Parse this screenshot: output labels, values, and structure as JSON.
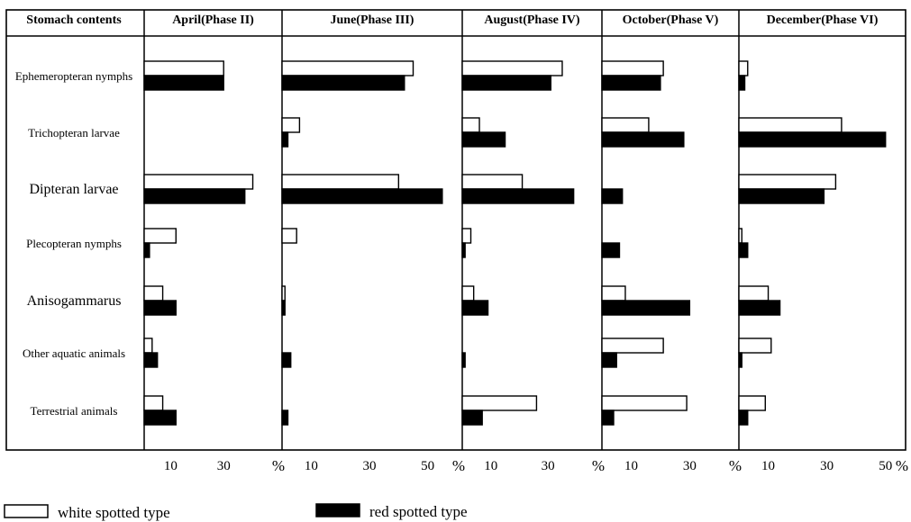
{
  "chart_data": {
    "type": "bar",
    "stub_header": "Stomach contents",
    "categories": [
      "Ephemeropteran nymphs",
      "Trichopteran larvae",
      "Dipteran larvae",
      "Plecopteran nymphs",
      "Anisogammarus",
      "Other aquatic animals",
      "Terrestrial animals"
    ],
    "unit": "%",
    "legend": {
      "white_label": "white spotted type",
      "red_label": "red spotted type",
      "placement": "bottom"
    },
    "colors": {
      "white": "#ffffff",
      "red": "#000000",
      "grid": "#000000"
    },
    "panels": [
      {
        "header": "April(Phase II)",
        "xlim": [
          0,
          50
        ],
        "tick_values": [
          10,
          30
        ],
        "tick_labels": [
          "10",
          "30"
        ],
        "series": [
          {
            "name": "white spotted type",
            "values": [
              30,
              0,
              41,
              12,
              7,
              3,
              7
            ]
          },
          {
            "name": "red spotted type",
            "values": [
              30,
              0,
              38,
              2,
              12,
              5,
              12
            ]
          }
        ]
      },
      {
        "header": "June(Phase III)",
        "xlim": [
          0,
          60
        ],
        "tick_values": [
          10,
          30,
          50
        ],
        "tick_labels": [
          "10",
          "30",
          "50"
        ],
        "series": [
          {
            "name": "white spotted type",
            "values": [
              45,
              6,
              40,
              5,
              1,
              0,
              0
            ]
          },
          {
            "name": "red spotted type",
            "values": [
              42,
              2,
              55,
              0,
              1,
              3,
              2
            ]
          }
        ]
      },
      {
        "header": "August(Phase IV)",
        "xlim": [
          0,
          47
        ],
        "tick_values": [
          10,
          30
        ],
        "tick_labels": [
          "10",
          "30"
        ],
        "series": [
          {
            "name": "white spotted type",
            "values": [
              35,
              6,
              21,
              3,
              4,
              0,
              26
            ]
          },
          {
            "name": "red spotted type",
            "values": [
              31,
              15,
              39,
              1,
              9,
              1,
              7
            ]
          }
        ]
      },
      {
        "header": "October(Phase V)",
        "xlim": [
          0,
          45
        ],
        "tick_values": [
          10,
          30
        ],
        "tick_labels": [
          "10",
          "30"
        ],
        "series": [
          {
            "name": "white spotted type",
            "values": [
              21,
              16,
              0,
              0,
              8,
              21,
              29
            ]
          },
          {
            "name": "red spotted type",
            "values": [
              20,
              28,
              7,
              6,
              30,
              5,
              4
            ]
          }
        ]
      },
      {
        "header": "December(Phase VI)",
        "xlim": [
          0,
          55
        ],
        "tick_values": [
          10,
          30,
          50
        ],
        "tick_labels": [
          "10",
          "30",
          "50"
        ],
        "series": [
          {
            "name": "white spotted type",
            "values": [
              3,
              35,
              33,
              1,
              10,
              11,
              9
            ]
          },
          {
            "name": "red spotted type",
            "values": [
              2,
              50,
              29,
              3,
              14,
              1,
              3
            ]
          }
        ]
      }
    ]
  }
}
